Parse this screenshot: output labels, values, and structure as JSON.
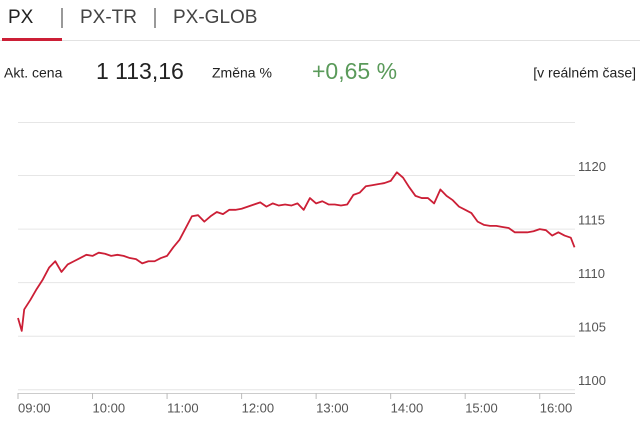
{
  "tabs": [
    "PX",
    "PX-TR",
    "PX-GLOB"
  ],
  "info": {
    "price_label": "Akt. cena",
    "price": "1 113,16",
    "change_label": "Změna %",
    "change": "+0,65 %",
    "mode": "[v reálném čase]"
  },
  "chart_data": {
    "type": "line",
    "color": "#cc1f36",
    "x": [
      "09:00",
      "09:03",
      "09:05",
      "09:10",
      "09:15",
      "09:20",
      "09:25",
      "09:30",
      "09:35",
      "09:40",
      "09:45",
      "09:50",
      "09:55",
      "10:00",
      "10:05",
      "10:10",
      "10:15",
      "10:20",
      "10:25",
      "10:30",
      "10:35",
      "10:40",
      "10:45",
      "10:50",
      "10:55",
      "11:00",
      "11:05",
      "11:10",
      "11:15",
      "11:20",
      "11:25",
      "11:30",
      "11:35",
      "11:40",
      "11:45",
      "11:50",
      "11:55",
      "12:00",
      "12:05",
      "12:10",
      "12:15",
      "12:20",
      "12:25",
      "12:30",
      "12:35",
      "12:40",
      "12:45",
      "12:50",
      "12:55",
      "13:00",
      "13:05",
      "13:10",
      "13:15",
      "13:20",
      "13:25",
      "13:30",
      "13:35",
      "13:40",
      "13:45",
      "13:50",
      "13:55",
      "14:00",
      "14:05",
      "14:10",
      "14:15",
      "14:20",
      "14:25",
      "14:30",
      "14:35",
      "14:40",
      "14:45",
      "14:50",
      "14:55",
      "15:00",
      "15:05",
      "15:10",
      "15:15",
      "15:20",
      "15:25",
      "15:30",
      "15:35",
      "15:40",
      "15:45",
      "15:50",
      "15:55",
      "16:00",
      "16:05",
      "16:10",
      "16:15",
      "16:20",
      "16:25",
      "16:28"
    ],
    "values": [
      1106.7,
      1105.5,
      1107.5,
      1108.4,
      1109.4,
      1110.3,
      1111.4,
      1112.0,
      1111.0,
      1111.7,
      1112.0,
      1112.3,
      1112.6,
      1112.5,
      1112.8,
      1112.7,
      1112.5,
      1112.6,
      1112.5,
      1112.3,
      1112.2,
      1111.8,
      1112.0,
      1112.0,
      1112.3,
      1112.5,
      1113.3,
      1114.0,
      1115.1,
      1116.2,
      1116.3,
      1115.7,
      1116.2,
      1116.6,
      1116.4,
      1116.8,
      1116.8,
      1116.9,
      1117.1,
      1117.3,
      1117.5,
      1117.1,
      1117.4,
      1117.2,
      1117.3,
      1117.2,
      1117.4,
      1116.8,
      1117.9,
      1117.4,
      1117.6,
      1117.3,
      1117.3,
      1117.2,
      1117.3,
      1118.2,
      1118.4,
      1119.0,
      1119.1,
      1119.2,
      1119.3,
      1119.5,
      1120.3,
      1119.8,
      1118.9,
      1118.1,
      1117.9,
      1117.9,
      1117.4,
      1118.7,
      1118.1,
      1117.7,
      1117.1,
      1116.8,
      1116.5,
      1115.7,
      1115.4,
      1115.3,
      1115.3,
      1115.2,
      1115.1,
      1114.7,
      1114.7,
      1114.7,
      1114.8,
      1115.0,
      1114.9,
      1114.4,
      1114.7,
      1114.4,
      1114.2,
      1113.3
    ],
    "xlim": [
      "09:00",
      "16:30"
    ],
    "xticks": [
      "09:00",
      "10:00",
      "11:00",
      "12:00",
      "13:00",
      "14:00",
      "15:00",
      "16:00"
    ],
    "ylim": [
      1099.7,
      1125
    ],
    "yticks": [
      1100,
      1105,
      1110,
      1115,
      1120
    ],
    "grid": true
  }
}
